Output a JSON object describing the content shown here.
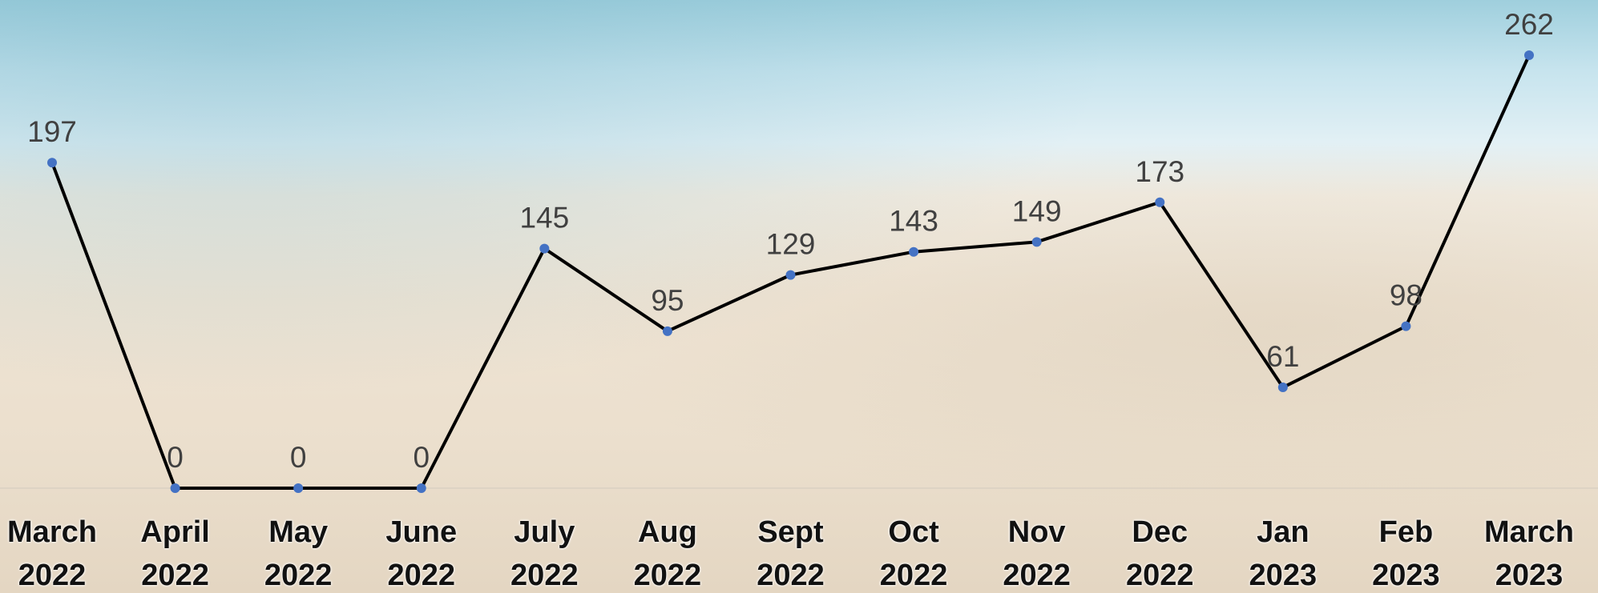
{
  "chart_data": {
    "type": "line",
    "categories": [
      "March 2022",
      "April 2022",
      "May 2022",
      "June 2022",
      "July 2022",
      "Aug 2022",
      "Sept 2022",
      "Oct 2022",
      "Nov 2022",
      "Dec 2022",
      "Jan 2023",
      "Feb 2023",
      "March 2023"
    ],
    "values": [
      197,
      0,
      0,
      0,
      145,
      95,
      129,
      143,
      149,
      173,
      61,
      98,
      262
    ],
    "line_color": "#000000",
    "marker_color": "#4472c4"
  }
}
